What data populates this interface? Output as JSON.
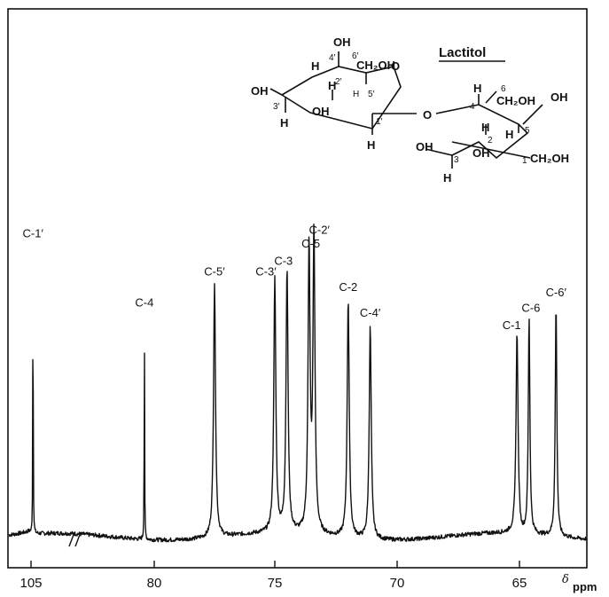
{
  "chart_data": {
    "type": "line",
    "title": "Lactitol",
    "xlabel_symbol": "δ",
    "xlabel_unit": "ppm",
    "xlim": [
      105.5,
      61.5
    ],
    "axis_break": true,
    "xticks": [
      {
        "value": 105,
        "label": "105"
      },
      {
        "value": 80,
        "label": "80"
      },
      {
        "value": 75,
        "label": "75"
      },
      {
        "value": 70,
        "label": "70"
      },
      {
        "value": 65,
        "label": "65"
      }
    ],
    "peaks": [
      {
        "label": "C-1′",
        "ppm": 104.6,
        "height": 0.845
      },
      {
        "label": "C-4",
        "ppm": 82.0,
        "height": 0.645
      },
      {
        "label": "C-5′",
        "ppm": 77.5,
        "height": 0.735
      },
      {
        "label": "C-3′",
        "ppm": 75.0,
        "height": 0.735
      },
      {
        "label": "C-3",
        "ppm": 74.5,
        "height": 0.765
      },
      {
        "label": "C-5",
        "ppm": 73.6,
        "height": 0.815
      },
      {
        "label": "C-2′",
        "ppm": 73.4,
        "height": 0.855
      },
      {
        "label": "C-2",
        "ppm": 72.0,
        "height": 0.69
      },
      {
        "label": "C-4′",
        "ppm": 71.1,
        "height": 0.615
      },
      {
        "label": "C-1",
        "ppm": 65.1,
        "height": 0.58
      },
      {
        "label": "C-6",
        "ppm": 64.5,
        "height": 0.63
      },
      {
        "label": "C-6′",
        "ppm": 63.1,
        "height": 0.675
      }
    ]
  },
  "structure": {
    "name": "Lactitol",
    "labels": {
      "oh": "OH",
      "h": "H",
      "o": "O",
      "ch2oh": "CH₂OH"
    },
    "ring_positions": [
      "1′",
      "2′",
      "3′",
      "4′",
      "5′",
      "6′",
      "1",
      "2",
      "3",
      "4",
      "5",
      "6"
    ]
  }
}
